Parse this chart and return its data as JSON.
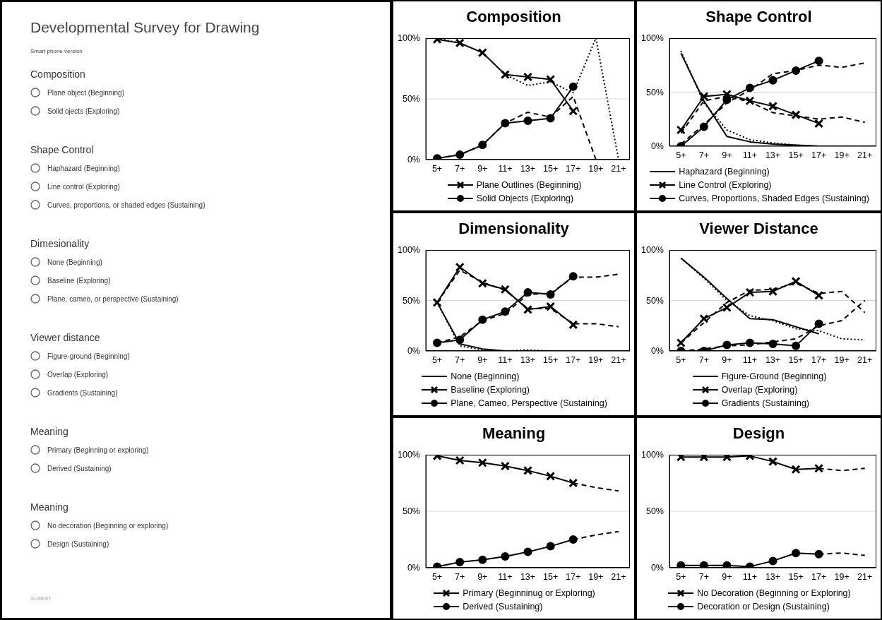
{
  "chart_data": [
    {
      "type": "other",
      "title": "Developmental Survey for Drawing",
      "subtitle": "Smart phone version",
      "series": [
        {
          "name": "Composition",
          "values": [
            null,
            null
          ]
        },
        {
          "name": "Shape Control",
          "values": [
            null,
            null,
            null
          ]
        },
        {
          "name": "Dimesionality",
          "values": [
            null,
            null,
            null
          ]
        },
        {
          "name": "Viewer distance",
          "values": [
            null,
            null,
            null
          ]
        },
        {
          "name": "Meaning",
          "values": [
            null,
            null
          ]
        },
        {
          "name": "Meaning",
          "values": [
            null,
            null
          ]
        }
      ],
      "annotations": [
        "Plane object (Beginning)",
        "Solid ojects (Exploring)",
        "Haphazard (Beginning)",
        "Line control (Exploring)",
        "Curves, proportions, or shaded edges (Sustaining)",
        "None (Beginning)",
        "Baseline (Exploring)",
        "Plane, cameo, or perspective (Sustaining)",
        "Figure-ground (Beginning)",
        "Overlap (Exploring)",
        "Gradients (Sustaining)",
        "Primary (Beginning or exploring)",
        "Derived (Sustaining)",
        "No decoration (Beginning or exploring)",
        "Design (Sustaining)",
        "SUBMIT"
      ]
    },
    {
      "type": "line",
      "title": "Composition",
      "categories": [
        "5+",
        "7+",
        "9+",
        "11+",
        "13+",
        "15+",
        "17+",
        "19+",
        "21+"
      ],
      "ylim": [
        0,
        100
      ],
      "yticks": [
        {
          "value": 0,
          "label": "0%"
        },
        {
          "value": 50,
          "label": "50%"
        },
        {
          "value": 100,
          "label": "100%"
        }
      ],
      "grid": "y",
      "legend": "bottom",
      "series": [
        {
          "name": "Plane Outlines (Beginning)",
          "color": "#000000",
          "marker": "cross",
          "line_style": "solid",
          "values": [
            99,
            96,
            88,
            70,
            68,
            66,
            40,
            null,
            null
          ]
        },
        {
          "name": "Solid Objects (Exploring)",
          "color": "#000000",
          "marker": "circle",
          "line_style": "solid",
          "values": [
            1,
            4,
            12,
            30,
            32,
            34,
            60,
            null,
            null
          ]
        },
        {
          "color": "#000000",
          "marker": "none",
          "line_style": "dotted",
          "values": [
            100,
            96,
            88,
            70,
            61,
            64,
            55,
            100,
            0
          ]
        },
        {
          "color": "#000000",
          "marker": "none",
          "line_style": "dashed",
          "values": [
            1,
            4,
            12,
            30,
            39,
            35,
            52,
            0,
            0
          ]
        }
      ]
    },
    {
      "type": "line",
      "title": "Shape Control",
      "categories": [
        "5+",
        "7+",
        "9+",
        "11+",
        "13+",
        "15+",
        "17+",
        "19+",
        "21+"
      ],
      "ylim": [
        0,
        100
      ],
      "yticks": [
        {
          "value": 0,
          "label": "0%"
        },
        {
          "value": 50,
          "label": "50%"
        },
        {
          "value": 100,
          "label": "100%"
        }
      ],
      "grid": "y",
      "legend": "bottom",
      "series": [
        {
          "name": "Haphazard (Beginning)",
          "color": "#000000",
          "marker": "none",
          "line_style": "solid",
          "values": [
            86,
            42,
            9,
            4,
            2,
            1,
            0,
            null,
            null
          ]
        },
        {
          "name": "Line Control (Exploring)",
          "color": "#000000",
          "marker": "cross",
          "line_style": "solid",
          "values": [
            15,
            46,
            48,
            42,
            37,
            29,
            21,
            null,
            null
          ]
        },
        {
          "name": "Curves, Proportions, Shaded Edges (Sustaining)",
          "color": "#000000",
          "marker": "circle",
          "line_style": "solid",
          "values": [
            0,
            18,
            43,
            54,
            61,
            70,
            79,
            null,
            null
          ]
        },
        {
          "color": "#000000",
          "marker": "none",
          "line_style": "dotted",
          "values": [
            88,
            40,
            15,
            6,
            3,
            1,
            0,
            0,
            0
          ]
        },
        {
          "color": "#000000",
          "marker": "none",
          "line_style": "dashed",
          "values": [
            12,
            42,
            46,
            41,
            31,
            28,
            25,
            27,
            22
          ]
        },
        {
          "color": "#000000",
          "marker": "none",
          "line_style": "dashed",
          "values": [
            2,
            20,
            40,
            52,
            67,
            70,
            75,
            73,
            77
          ]
        }
      ]
    },
    {
      "type": "line",
      "title": "Dimensionality",
      "categories": [
        "5+",
        "7+",
        "9+",
        "11+",
        "13+",
        "15+",
        "17+",
        "19+",
        "21+"
      ],
      "ylim": [
        0,
        100
      ],
      "yticks": [
        {
          "value": 0,
          "label": "0%"
        },
        {
          "value": 50,
          "label": "50%"
        },
        {
          "value": 100,
          "label": "100%"
        }
      ],
      "grid": "y",
      "legend": "bottom",
      "series": [
        {
          "name": "None (Beginning)",
          "color": "#000000",
          "marker": "none",
          "line_style": "solid",
          "values": [
            48,
            7,
            2,
            0,
            0,
            0,
            0,
            null,
            null
          ]
        },
        {
          "name": "Baseline (Exploring)",
          "color": "#000000",
          "marker": "cross",
          "line_style": "solid",
          "values": [
            48,
            83,
            67,
            61,
            41,
            44,
            26,
            null,
            null
          ]
        },
        {
          "name": "Plane, Cameo, Perspective (Sustaining)",
          "color": "#000000",
          "marker": "circle",
          "line_style": "solid",
          "values": [
            8,
            11,
            31,
            39,
            58,
            56,
            74,
            null,
            null
          ]
        },
        {
          "color": "#000000",
          "marker": "none",
          "line_style": "dotted",
          "values": [
            48,
            5,
            1,
            0,
            1,
            0,
            0,
            0,
            0
          ]
        },
        {
          "color": "#000000",
          "marker": "none",
          "line_style": "dashed",
          "values": [
            48,
            80,
            68,
            60,
            42,
            42,
            27,
            27,
            24
          ]
        },
        {
          "color": "#000000",
          "marker": "none",
          "line_style": "dashed",
          "values": [
            8,
            14,
            30,
            37,
            56,
            57,
            73,
            73,
            76
          ]
        }
      ]
    },
    {
      "type": "line",
      "title": "Viewer Distance",
      "categories": [
        "5+",
        "7+",
        "9+",
        "11+",
        "13+",
        "15+",
        "17+",
        "19+",
        "21+"
      ],
      "ylim": [
        0,
        100
      ],
      "yticks": [
        {
          "value": 0,
          "label": "0%"
        },
        {
          "value": 50,
          "label": "50%"
        },
        {
          "value": 100,
          "label": "100%"
        }
      ],
      "grid": "y",
      "legend": "bottom",
      "series": [
        {
          "name": "Figure-Ground (Beginning)",
          "color": "#000000",
          "marker": "none",
          "line_style": "solid",
          "values": [
            92,
            73,
            52,
            32,
            31,
            24,
            17,
            null,
            null
          ]
        },
        {
          "name": "Overlap (Exploring)",
          "color": "#000000",
          "marker": "cross",
          "line_style": "solid",
          "values": [
            8,
            32,
            43,
            58,
            59,
            69,
            55,
            null,
            null
          ]
        },
        {
          "name": "Gradients (Sustaining)",
          "color": "#000000",
          "marker": "circle",
          "line_style": "solid",
          "values": [
            0,
            0,
            6,
            8,
            7,
            5,
            27,
            null,
            null
          ]
        },
        {
          "color": "#000000",
          "marker": "none",
          "line_style": "dotted",
          "values": [
            92,
            72,
            50,
            35,
            30,
            22,
            20,
            12,
            11
          ]
        },
        {
          "color": "#000000",
          "marker": "none",
          "line_style": "dashed",
          "values": [
            8,
            28,
            48,
            60,
            61,
            67,
            57,
            59,
            38
          ]
        },
        {
          "color": "#000000",
          "marker": "none",
          "line_style": "dashed",
          "values": [
            0,
            2,
            5,
            6,
            9,
            12,
            25,
            30,
            50
          ]
        }
      ]
    },
    {
      "type": "line",
      "title": "Meaning",
      "categories": [
        "5+",
        "7+",
        "9+",
        "11+",
        "13+",
        "15+",
        "17+",
        "19+",
        "21+"
      ],
      "ylim": [
        0,
        100
      ],
      "yticks": [
        {
          "value": 0,
          "label": "0%"
        },
        {
          "value": 50,
          "label": "50%"
        },
        {
          "value": 100,
          "label": "100%"
        }
      ],
      "grid": "y",
      "legend": "bottom",
      "series": [
        {
          "name": "Primary (Beginninug  or Exploring)",
          "color": "#000000",
          "marker": "cross",
          "line_style": "solid",
          "values": [
            99,
            95,
            93,
            90,
            86,
            81,
            75,
            null,
            null
          ]
        },
        {
          "name": "Derived (Sustaining)",
          "color": "#000000",
          "marker": "circle",
          "line_style": "solid",
          "values": [
            1,
            5,
            7,
            10,
            14,
            19,
            25,
            null,
            null
          ]
        },
        {
          "color": "#000000",
          "marker": "none",
          "line_style": "dashed",
          "values": [
            null,
            null,
            null,
            null,
            null,
            null,
            75,
            71,
            68
          ]
        },
        {
          "color": "#000000",
          "marker": "none",
          "line_style": "dashed",
          "values": [
            null,
            null,
            null,
            null,
            null,
            null,
            25,
            29,
            32
          ]
        }
      ]
    },
    {
      "type": "line",
      "title": "Design",
      "categories": [
        "5+",
        "7+",
        "9+",
        "11+",
        "13+",
        "15+",
        "17+",
        "19+",
        "21+"
      ],
      "ylim": [
        0,
        100
      ],
      "yticks": [
        {
          "value": 0,
          "label": "0%"
        },
        {
          "value": 50,
          "label": "50%"
        },
        {
          "value": 100,
          "label": "100%"
        }
      ],
      "grid": "y",
      "legend": "bottom",
      "series": [
        {
          "name": "No Decoration (Beginning or Exploring)",
          "color": "#000000",
          "marker": "cross",
          "line_style": "solid",
          "values": [
            98,
            98,
            98,
            99,
            94,
            87,
            88,
            null,
            null
          ]
        },
        {
          "name": "Decoration or Design (Sustaining)",
          "color": "#000000",
          "marker": "circle",
          "line_style": "solid",
          "values": [
            2,
            2,
            2,
            1,
            6,
            13,
            12,
            null,
            null
          ]
        },
        {
          "color": "#000000",
          "marker": "none",
          "line_style": "dashed",
          "values": [
            null,
            null,
            null,
            null,
            null,
            null,
            88,
            86,
            88
          ]
        },
        {
          "color": "#000000",
          "marker": "none",
          "line_style": "dashed",
          "values": [
            null,
            null,
            null,
            null,
            null,
            null,
            12,
            13,
            11
          ]
        }
      ]
    }
  ]
}
